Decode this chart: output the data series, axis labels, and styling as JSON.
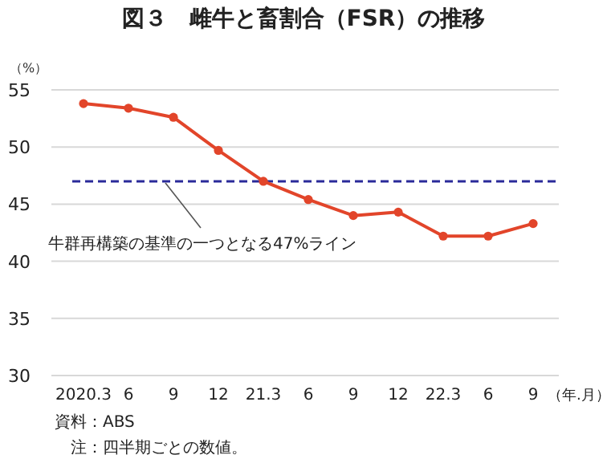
{
  "chart_data": {
    "type": "line",
    "title": "図３　雌牛と畜割合（FSR）の推移",
    "ylabel": "（%）",
    "xlabel": "（年.月）",
    "categories": [
      "2020.3",
      "6",
      "9",
      "12",
      "21.3",
      "6",
      "9",
      "12",
      "22.3",
      "6",
      "9"
    ],
    "series": [
      {
        "color": "#e2452a",
        "values": [
          53.8,
          53.4,
          52.6,
          49.7,
          47.0,
          45.4,
          44.0,
          44.3,
          42.2,
          42.2,
          43.3
        ]
      }
    ],
    "ylim": [
      30,
      55
    ],
    "yticks": [
      30,
      35,
      40,
      45,
      50,
      55
    ],
    "grid": "y",
    "marker": "circle",
    "line_style": "solid",
    "ref_lines": [
      {
        "axis": "y",
        "value": 47,
        "label": "牛群再構築の基準の一つとなる47%ライン",
        "color": "#2a2a9a",
        "line_style": "dashed"
      }
    ],
    "annotations": [
      "資料：ABS",
      "注：四半期ごとの数値。"
    ]
  }
}
